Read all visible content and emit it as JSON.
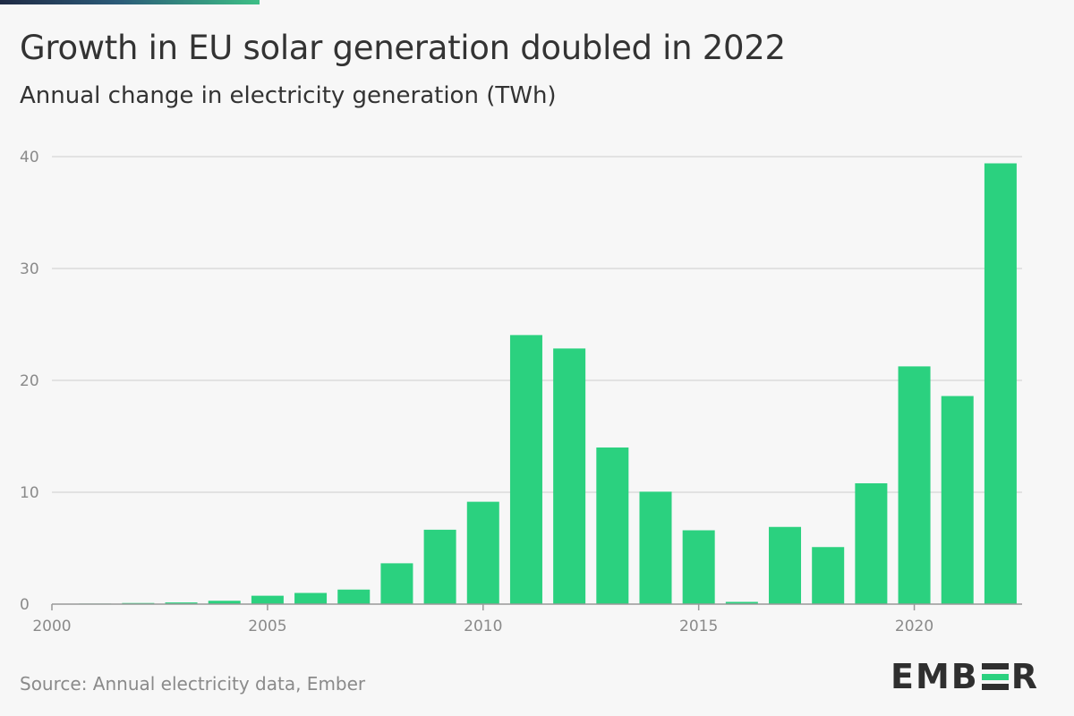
{
  "header": {
    "title": "Growth in EU solar generation doubled in 2022",
    "subtitle": "Annual change in electricity generation (TWh)"
  },
  "footer": {
    "source": "Source: Annual electricity data, Ember",
    "logo_left": "EMB",
    "logo_right": "R"
  },
  "colors": {
    "bar": "#2bd17f",
    "grid": "#cccccc",
    "axis": "#999999",
    "accent_bar": [
      "#1f2a44",
      "#3dbf86"
    ]
  },
  "chart_data": {
    "type": "bar",
    "title": "Growth in EU solar generation doubled in 2022",
    "subtitle": "Annual change in electricity generation (TWh)",
    "xlabel": "",
    "ylabel": "",
    "x": [
      2001,
      2002,
      2003,
      2004,
      2005,
      2006,
      2007,
      2008,
      2009,
      2010,
      2011,
      2012,
      2013,
      2014,
      2015,
      2016,
      2017,
      2018,
      2019,
      2020,
      2021,
      2022
    ],
    "values": [
      0.05,
      0.1,
      0.15,
      0.3,
      0.75,
      1.0,
      1.3,
      3.65,
      6.65,
      9.15,
      24.05,
      22.85,
      14.0,
      10.05,
      6.6,
      0.2,
      6.9,
      5.1,
      10.8,
      21.25,
      18.6,
      39.4
    ],
    "ylim": [
      0,
      40
    ],
    "yticks": [
      0,
      10,
      20,
      30,
      40
    ],
    "xticks": [
      2000,
      2005,
      2010,
      2015,
      2020
    ],
    "grid": true,
    "legend": "none"
  }
}
